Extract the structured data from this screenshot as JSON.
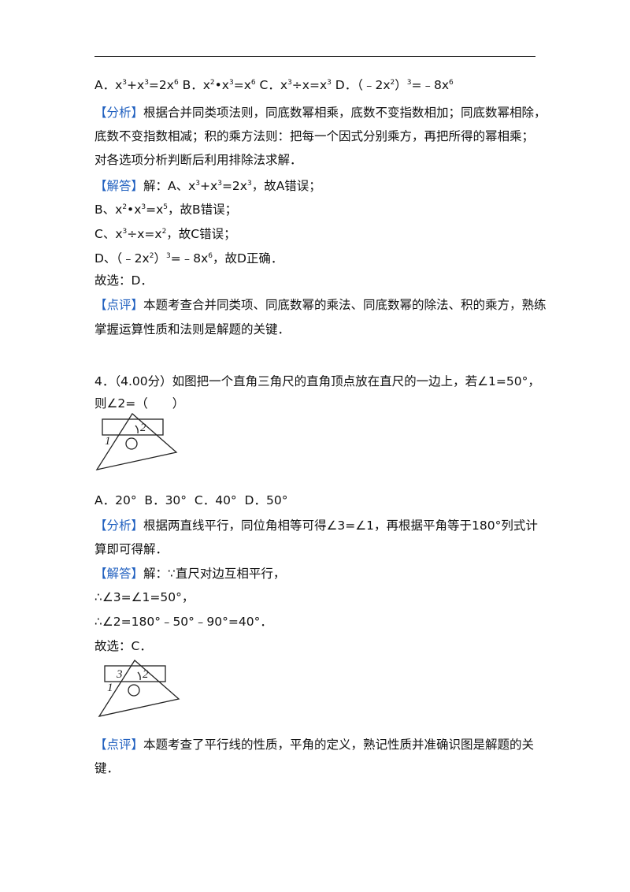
{
  "lines": [
    [
      {
        "t": "A．x"
      },
      {
        "t": "3",
        "s": "sup"
      },
      {
        "t": "+x"
      },
      {
        "t": "3",
        "s": "sup"
      },
      {
        "t": "=2x"
      },
      {
        "t": "6",
        "s": "sup"
      },
      {
        "t": " B．x"
      },
      {
        "t": "2",
        "s": "sup"
      },
      {
        "t": "•x"
      },
      {
        "t": "3",
        "s": "sup"
      },
      {
        "t": "=x"
      },
      {
        "t": "6",
        "s": "sup"
      },
      {
        "t": " C．x"
      },
      {
        "t": "3",
        "s": "sup"
      },
      {
        "t": "÷x=x"
      },
      {
        "t": "3",
        "s": "sup"
      },
      {
        "t": " D．（﹣2x"
      },
      {
        "t": "2",
        "s": "sup"
      },
      {
        "t": "）"
      },
      {
        "t": "3",
        "s": "sup"
      },
      {
        "t": "=﹣8x"
      },
      {
        "t": "6",
        "s": "sup"
      }
    ],
    [
      {
        "t": "【分析】",
        "s": "tag"
      },
      {
        "t": "根据合并同类项法则，同底数幂相乘，底数不变指数相加；同底数幂相除，"
      }
    ],
    [
      {
        "t": "底数不变指数相减；积的乘方法则：把每一个因式分别乘方，再把所得的幂相乘；"
      }
    ],
    [
      {
        "t": "对各选项分析判断后利用排除法求解．"
      }
    ],
    [
      {
        "t": "【解答】",
        "s": "tag"
      },
      {
        "t": "解：A、x"
      },
      {
        "t": "3",
        "s": "sup"
      },
      {
        "t": "+x"
      },
      {
        "t": "3",
        "s": "sup"
      },
      {
        "t": "=2x"
      },
      {
        "t": "3",
        "s": "sup"
      },
      {
        "t": "，故A错误；"
      }
    ],
    [
      {
        "t": "B、x"
      },
      {
        "t": "2",
        "s": "sup"
      },
      {
        "t": "•x"
      },
      {
        "t": "3",
        "s": "sup"
      },
      {
        "t": "=x"
      },
      {
        "t": "5",
        "s": "sup"
      },
      {
        "t": "，故B错误；"
      }
    ],
    [
      {
        "t": "C、x"
      },
      {
        "t": "3",
        "s": "sup"
      },
      {
        "t": "÷x=x"
      },
      {
        "t": "2",
        "s": "sup"
      },
      {
        "t": "，故C错误；"
      }
    ],
    [
      {
        "t": "D、（﹣2x"
      },
      {
        "t": "2",
        "s": "sup"
      },
      {
        "t": "）"
      },
      {
        "t": "3",
        "s": "sup"
      },
      {
        "t": "=﹣8x"
      },
      {
        "t": "6",
        "s": "sup"
      },
      {
        "t": "，故D正确．"
      }
    ],
    [
      {
        "t": "故选：D．"
      }
    ],
    [
      {
        "t": "【点评】",
        "s": "tag"
      },
      {
        "t": "本题考查合并同类项、同底数幂的乘法、同底数幂的除法、积的乘方，熟练"
      }
    ],
    [
      {
        "t": "掌握运算性质和法则是解题的关键．"
      }
    ],
    [
      {
        "t": "4．（4.00分）如图把一个直角三角尺的直角顶点放在直尺的一边上，若∠1=50°，"
      }
    ],
    [
      {
        "t": "则∠2=（　　）"
      }
    ],
    [
      {
        "t": "A．20°  B．30°  C．40°  D．50°"
      }
    ],
    [
      {
        "t": "【分析】",
        "s": "tag"
      },
      {
        "t": "根据两直线平行，同位角相等可得∠3=∠1，再根据平角等于180°列式计"
      }
    ],
    [
      {
        "t": "算即可得解．"
      }
    ],
    [
      {
        "t": "【解答】",
        "s": "tag"
      },
      {
        "t": "解：∵直尺对边互相平行，"
      }
    ],
    [
      {
        "t": "∴∠3=∠1=50°，"
      }
    ],
    [
      {
        "t": "∴∠2=180°﹣50°﹣90°=40°．"
      }
    ],
    [
      {
        "t": "故选：C．"
      }
    ],
    [
      {
        "t": "【点评】",
        "s": "tag"
      },
      {
        "t": "本题考查了平行线的性质，平角的定义，熟记性质并准确识图是解题的关"
      }
    ],
    [
      {
        "t": "键．"
      }
    ]
  ],
  "figure1": {
    "labels": [
      "1",
      "2"
    ]
  },
  "figure2": {
    "labels": [
      "3",
      "1",
      "2"
    ]
  }
}
